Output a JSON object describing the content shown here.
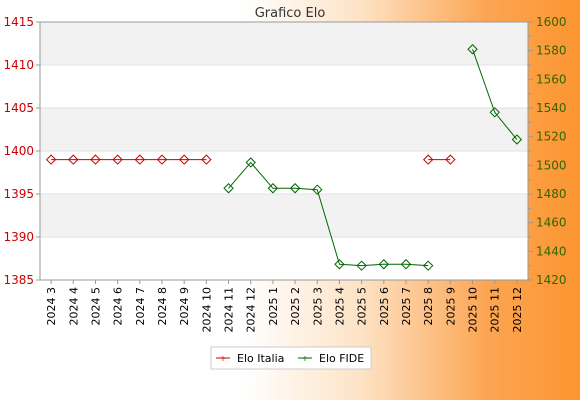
{
  "chart_data": {
    "type": "line",
    "title": "Grafico Elo",
    "categories": [
      "2024 3",
      "2024 4",
      "2024 5",
      "2024 6",
      "2024 7",
      "2024 8",
      "2024 9",
      "2024 10",
      "2024 11",
      "2024 12",
      "2025 1",
      "2025 2",
      "2025 3",
      "2025 4",
      "2025 5",
      "2025 6",
      "2025 7",
      "2025 8",
      "2025 9",
      "2025 10",
      "2025 11",
      "2025 12"
    ],
    "y_left": {
      "min": 1385,
      "max": 1415,
      "ticks": [
        1385,
        1390,
        1395,
        1400,
        1405,
        1410,
        1415
      ],
      "color": "#cc0000"
    },
    "y_right": {
      "min": 1420,
      "max": 1600,
      "ticks": [
        1420,
        1440,
        1460,
        1480,
        1500,
        1520,
        1540,
        1560,
        1580,
        1600
      ],
      "color": "#336600"
    },
    "grid": true,
    "legend_position": "bottom",
    "series": [
      {
        "name": "Elo Italia",
        "axis": "left",
        "color": "#cc0000",
        "values": [
          1399,
          1399,
          1399,
          1399,
          1399,
          1399,
          1399,
          1399,
          null,
          null,
          null,
          null,
          null,
          null,
          null,
          null,
          null,
          1399,
          1399,
          null,
          null,
          null
        ]
      },
      {
        "name": "Elo FIDE",
        "axis": "right",
        "color": "#006600",
        "values": [
          null,
          null,
          null,
          null,
          null,
          null,
          null,
          null,
          1484,
          1502,
          1484,
          1484,
          1483,
          1431,
          1430,
          1431,
          1431,
          1430,
          null,
          1581,
          1537,
          1518
        ]
      }
    ]
  }
}
